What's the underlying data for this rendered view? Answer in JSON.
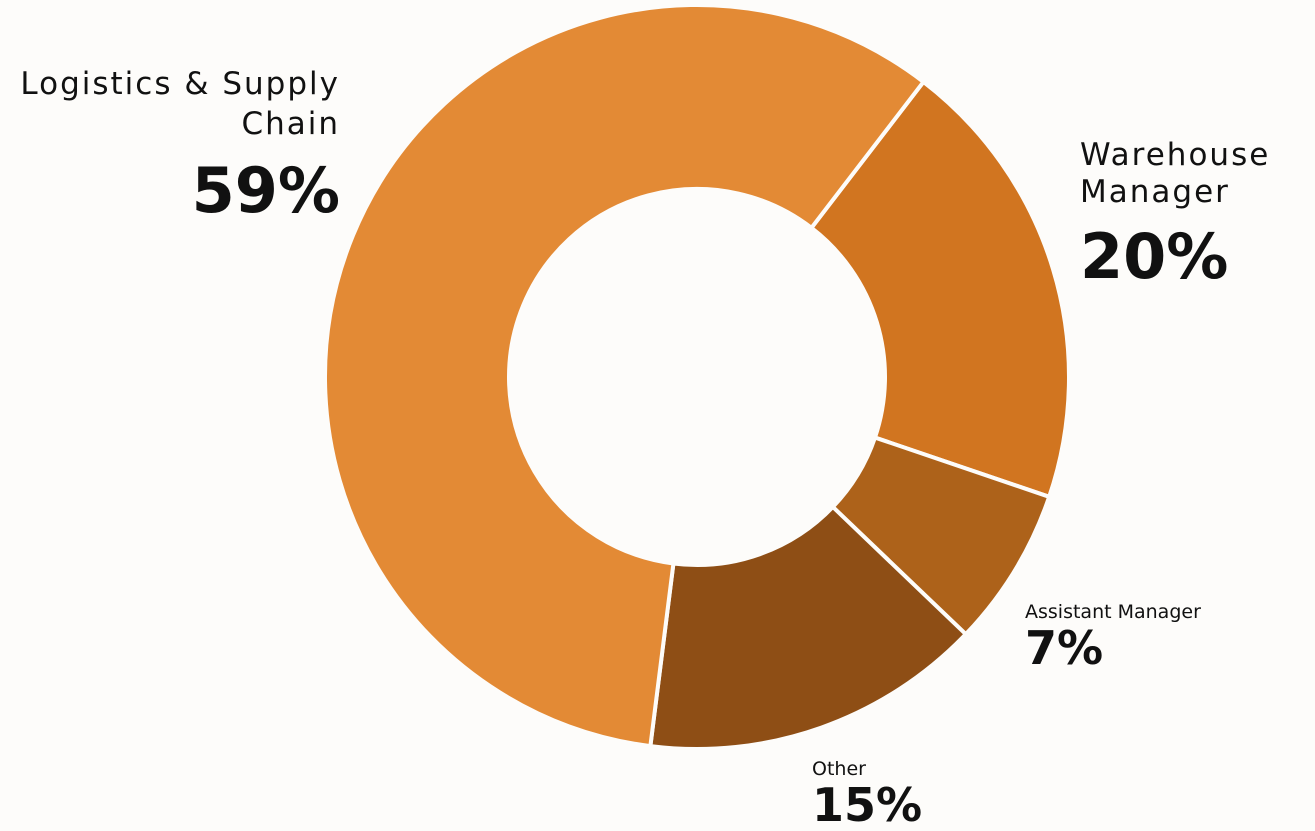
{
  "chart_data": {
    "type": "pie",
    "style": "donut",
    "title": "",
    "slices": [
      {
        "label_lines": [
          "Logistics & Supply",
          "Chain"
        ],
        "value": 59,
        "pct_text": "59%",
        "color": "#e38a35"
      },
      {
        "label_lines": [
          "Warehouse",
          "Manager"
        ],
        "value": 20,
        "pct_text": "20%",
        "color": "#d17520"
      },
      {
        "label_lines": [
          "Assistant   Manager"
        ],
        "value": 7,
        "pct_text": "7%",
        "color": "#ad621a"
      },
      {
        "label_lines": [
          "Other"
        ],
        "value": 15,
        "pct_text": "15%",
        "color": "#8e4e15"
      }
    ],
    "legend": "none"
  }
}
